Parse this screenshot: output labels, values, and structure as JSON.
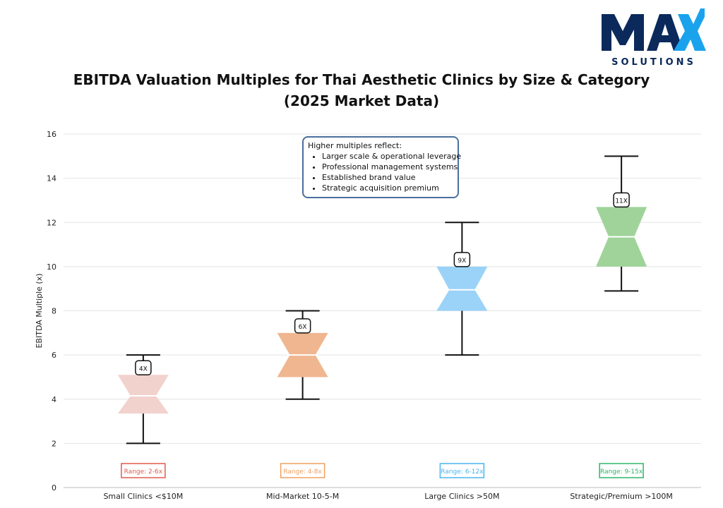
{
  "logo": {
    "wordmark": "MAX",
    "tagline": "SOLUTIONS",
    "colors": {
      "primary": "#0b2a5b",
      "accent": "#1aa3ec"
    }
  },
  "chart_data": {
    "type": "boxplot",
    "title_lines": [
      "EBITDA Valuation Multiples for Thai Aesthetic Clinics by Size & Category",
      "(2025 Market Data)"
    ],
    "ylabel": "EBITDA Multiple (x)",
    "xlabel": "",
    "ylim": [
      0,
      16
    ],
    "yticks": [
      "0",
      "2",
      "4",
      "6",
      "8",
      "10",
      "12",
      "14",
      "16"
    ],
    "grid": true,
    "categories": [
      {
        "label": "Small Clinics <$10M",
        "whisker_low": 2,
        "q1": 3.35,
        "median": 4.15,
        "q3": 5.1,
        "whisker_high": 6,
        "median_label": "4X",
        "range_label": "Range: 2-6x",
        "fill": "#f2d2cd",
        "edge": "#e05a4f"
      },
      {
        "label": "Mid-Market 10-5-M",
        "whisker_low": 4,
        "q1": 5,
        "median": 6,
        "q3": 7,
        "whisker_high": 8,
        "median_label": "6X",
        "range_label": "Range: 4-8x",
        "fill": "#efb690",
        "edge": "#f0a060"
      },
      {
        "label": "Large Clinics >50M",
        "whisker_low": 6,
        "q1": 8,
        "median": 8.95,
        "q3": 10,
        "whisker_high": 12,
        "median_label": "9X",
        "range_label": "Range: 6-12x",
        "fill": "#9ad3f7",
        "edge": "#48b6ee"
      },
      {
        "label": "Strategic/Premium >100M",
        "whisker_low": 8.9,
        "q1": 10,
        "median": 11.35,
        "q3": 12.7,
        "whisker_high": 15,
        "median_label": "11X",
        "range_label": "Range: 9-15x",
        "fill": "#9fd39a",
        "edge": "#2fb56a"
      }
    ],
    "annotation": {
      "heading": "Higher multiples reflect:",
      "items": [
        "Larger scale & operational leverage",
        "Professional management systems",
        "Established brand value",
        "Strategic acquisition premium"
      ],
      "border_color": "#4a6f9c"
    }
  }
}
